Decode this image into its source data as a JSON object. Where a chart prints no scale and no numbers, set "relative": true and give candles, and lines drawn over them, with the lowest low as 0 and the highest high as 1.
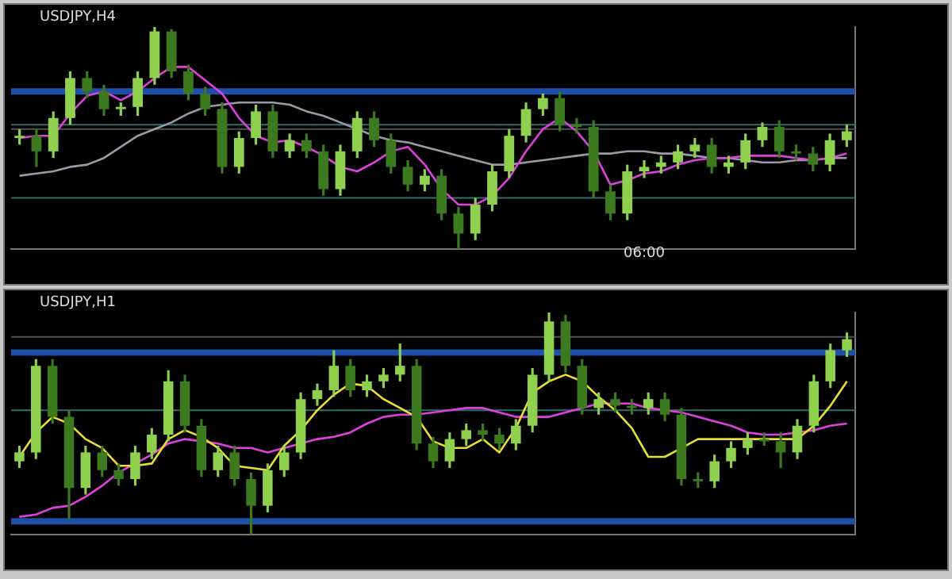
{
  "chart_data": [
    {
      "type": "candlestick",
      "title": "USDJPY,H4",
      "relative": true,
      "tick_labels": false,
      "legend": false,
      "colors": [
        "#8fd14f",
        "#3d7a1f",
        "#8fd14f",
        "#8fd14f",
        "#3d7a1f",
        "#3d7a1f",
        "#8fd14f",
        "#8fd14f",
        "#8fd14f",
        "#3d7a1f",
        "#3d7a1f",
        "#3d7a1f",
        "#3d7a1f",
        "#8fd14f",
        "#8fd14f",
        "#3d7a1f",
        "#8fd14f",
        "#3d7a1f",
        "#3d7a1f",
        "#8fd14f",
        "#8fd14f",
        "#3d7a1f",
        "#3d7a1f",
        "#3d7a1f",
        "#8fd14f",
        "#3d7a1f",
        "#3d7a1f",
        "#8fd14f",
        "#8fd14f",
        "#8fd14f",
        "#8fd14f",
        "#8fd14f",
        "#3d7a1f",
        "#3d7a1f",
        "#3d7a1f",
        "#3d7a1f",
        "#8fd14f",
        "#8fd14f",
        "#8fd14f",
        "#8fd14f",
        "#8fd14f",
        "#3d7a1f",
        "#8fd14f",
        "#8fd14f",
        "#8fd14f",
        "#3d7a1f",
        "#3d7a1f",
        "#3d7a1f",
        "#8fd14f",
        "#8fd14f"
      ],
      "categories": [
        null,
        null,
        null,
        null,
        null,
        null,
        null,
        null,
        null,
        null,
        null,
        null,
        null,
        null,
        null,
        null,
        null,
        null,
        null,
        null,
        null,
        null,
        null,
        null,
        null,
        null,
        null,
        null,
        null,
        null,
        null,
        null,
        null,
        null,
        null,
        null,
        null,
        null,
        null,
        null,
        null,
        null,
        null,
        null,
        null,
        null,
        null,
        null,
        null,
        null
      ],
      "ohlc": [
        [
          0.5,
          0.54,
          0.47,
          0.51
        ],
        [
          0.51,
          0.54,
          0.37,
          0.44
        ],
        [
          0.44,
          0.62,
          0.41,
          0.59
        ],
        [
          0.59,
          0.8,
          0.56,
          0.77
        ],
        [
          0.77,
          0.8,
          0.68,
          0.71
        ],
        [
          0.71,
          0.74,
          0.6,
          0.63
        ],
        [
          0.63,
          0.66,
          0.6,
          0.64
        ],
        [
          0.64,
          0.8,
          0.6,
          0.77
        ],
        [
          0.77,
          1.0,
          0.74,
          0.98
        ],
        [
          0.98,
          0.99,
          0.77,
          0.8
        ],
        [
          0.8,
          0.83,
          0.67,
          0.7
        ],
        [
          0.7,
          0.73,
          0.6,
          0.63
        ],
        [
          0.63,
          0.66,
          0.34,
          0.37
        ],
        [
          0.37,
          0.53,
          0.34,
          0.5
        ],
        [
          0.5,
          0.65,
          0.47,
          0.62
        ],
        [
          0.62,
          0.65,
          0.41,
          0.44
        ],
        [
          0.44,
          0.52,
          0.41,
          0.49
        ],
        [
          0.49,
          0.52,
          0.41,
          0.44
        ],
        [
          0.44,
          0.47,
          0.24,
          0.27
        ],
        [
          0.27,
          0.47,
          0.24,
          0.44
        ],
        [
          0.44,
          0.62,
          0.41,
          0.59
        ],
        [
          0.59,
          0.62,
          0.46,
          0.49
        ],
        [
          0.49,
          0.52,
          0.34,
          0.37
        ],
        [
          0.37,
          0.4,
          0.26,
          0.29
        ],
        [
          0.29,
          0.36,
          0.26,
          0.33
        ],
        [
          0.33,
          0.36,
          0.13,
          0.16
        ],
        [
          0.16,
          0.19,
          0.0,
          0.07
        ],
        [
          0.07,
          0.23,
          0.04,
          0.2
        ],
        [
          0.2,
          0.38,
          0.17,
          0.35
        ],
        [
          0.35,
          0.54,
          0.32,
          0.51
        ],
        [
          0.51,
          0.66,
          0.48,
          0.63
        ],
        [
          0.63,
          0.7,
          0.6,
          0.68
        ],
        [
          0.68,
          0.71,
          0.53,
          0.56
        ],
        [
          0.56,
          0.59,
          0.52,
          0.55
        ],
        [
          0.55,
          0.58,
          0.23,
          0.26
        ],
        [
          0.26,
          0.29,
          0.13,
          0.16
        ],
        [
          0.16,
          0.38,
          0.13,
          0.35
        ],
        [
          0.35,
          0.4,
          0.32,
          0.37
        ],
        [
          0.37,
          0.42,
          0.34,
          0.39
        ],
        [
          0.39,
          0.47,
          0.36,
          0.44
        ],
        [
          0.44,
          0.5,
          0.41,
          0.47
        ],
        [
          0.47,
          0.5,
          0.34,
          0.37
        ],
        [
          0.37,
          0.42,
          0.34,
          0.39
        ],
        [
          0.39,
          0.52,
          0.36,
          0.49
        ],
        [
          0.49,
          0.57,
          0.46,
          0.55
        ],
        [
          0.55,
          0.58,
          0.41,
          0.44
        ],
        [
          0.44,
          0.47,
          0.4,
          0.43
        ],
        [
          0.43,
          0.46,
          0.35,
          0.38
        ],
        [
          0.38,
          0.52,
          0.35,
          0.49
        ],
        [
          0.49,
          0.56,
          0.46,
          0.53
        ]
      ],
      "series": [
        {
          "type": "line",
          "color": "#e040e0",
          "values": [
            0.5,
            0.51,
            0.51,
            0.61,
            0.69,
            0.71,
            0.67,
            0.71,
            0.77,
            0.82,
            0.82,
            0.76,
            0.7,
            0.59,
            0.51,
            0.48,
            0.49,
            0.46,
            0.42,
            0.37,
            0.35,
            0.39,
            0.44,
            0.46,
            0.38,
            0.27,
            0.2,
            0.2,
            0.24,
            0.32,
            0.44,
            0.54,
            0.59,
            0.53,
            0.44,
            0.29,
            0.31,
            0.34,
            0.35,
            0.38,
            0.4,
            0.41,
            0.41,
            0.42,
            0.42,
            0.42,
            0.41,
            0.4,
            0.41,
            0.43
          ]
        },
        {
          "type": "line",
          "color": "#9a9aa6",
          "values": [
            0.33,
            0.34,
            0.35,
            0.37,
            0.38,
            0.41,
            0.46,
            0.51,
            0.54,
            0.57,
            0.61,
            0.64,
            0.65,
            0.66,
            0.66,
            0.66,
            0.65,
            0.62,
            0.6,
            0.57,
            0.54,
            0.51,
            0.49,
            0.48,
            0.46,
            0.44,
            0.42,
            0.4,
            0.38,
            0.38,
            0.39,
            0.4,
            0.41,
            0.42,
            0.43,
            0.43,
            0.44,
            0.44,
            0.43,
            0.43,
            0.42,
            0.41,
            0.41,
            0.4,
            0.39,
            0.39,
            0.4,
            0.4,
            0.41,
            0.41
          ]
        }
      ],
      "ref_lines": [
        {
          "axis": "y",
          "value": 0.71,
          "color": "#1f4fa8"
        },
        {
          "axis": "y",
          "value": 0.56,
          "color": "#2f6f6a"
        },
        {
          "axis": "y",
          "value": 0.54,
          "color": "#505050"
        },
        {
          "axis": "y",
          "value": 0.23,
          "color": "#2f6f6a"
        }
      ],
      "annotations": [
        "06:00"
      ]
    },
    {
      "type": "candlestick",
      "title": "USDJPY,H1",
      "relative": true,
      "tick_labels": false,
      "legend": false,
      "colors": [
        "#8fd14f",
        "#8fd14f",
        "#3d7a1f",
        "#3d7a1f",
        "#8fd14f",
        "#3d7a1f",
        "#3d7a1f",
        "#8fd14f",
        "#8fd14f",
        "#8fd14f",
        "#3d7a1f",
        "#3d7a1f",
        "#8fd14f",
        "#3d7a1f",
        "#3d7a1f",
        "#8fd14f",
        "#8fd14f",
        "#8fd14f",
        "#8fd14f",
        "#8fd14f",
        "#3d7a1f",
        "#8fd14f",
        "#8fd14f",
        "#8fd14f",
        "#3d7a1f",
        "#3d7a1f",
        "#8fd14f",
        "#8fd14f",
        "#3d7a1f",
        "#3d7a1f",
        "#8fd14f",
        "#8fd14f",
        "#8fd14f",
        "#3d7a1f",
        "#3d7a1f",
        "#8fd14f",
        "#3d7a1f",
        "#3d7a1f",
        "#8fd14f",
        "#3d7a1f",
        "#3d7a1f",
        "#3d7a1f",
        "#8fd14f",
        "#8fd14f",
        "#8fd14f",
        "#3d7a1f",
        "#3d7a1f",
        "#8fd14f",
        "#8fd14f",
        "#8fd14f",
        "#8fd14f"
      ],
      "categories": [
        null,
        null,
        null,
        null,
        null,
        null,
        null,
        null,
        null,
        null,
        null,
        null,
        null,
        null,
        null,
        null,
        null,
        null,
        null,
        null,
        null,
        null,
        null,
        null,
        null,
        null,
        null,
        null,
        null,
        null,
        null,
        null,
        null,
        null,
        null,
        null,
        null,
        null,
        null,
        null,
        null,
        null,
        null,
        null,
        null,
        null,
        null,
        null,
        null,
        null,
        null
      ],
      "ohlc": [
        [
          0.33,
          0.4,
          0.3,
          0.37
        ],
        [
          0.37,
          0.79,
          0.34,
          0.76
        ],
        [
          0.76,
          0.79,
          0.5,
          0.53
        ],
        [
          0.53,
          0.56,
          0.07,
          0.21
        ],
        [
          0.21,
          0.4,
          0.18,
          0.37
        ],
        [
          0.37,
          0.4,
          0.26,
          0.29
        ],
        [
          0.29,
          0.32,
          0.22,
          0.25
        ],
        [
          0.25,
          0.4,
          0.22,
          0.37
        ],
        [
          0.37,
          0.48,
          0.34,
          0.45
        ],
        [
          0.45,
          0.74,
          0.42,
          0.69
        ],
        [
          0.69,
          0.72,
          0.46,
          0.49
        ],
        [
          0.49,
          0.52,
          0.26,
          0.29
        ],
        [
          0.29,
          0.4,
          0.26,
          0.37
        ],
        [
          0.37,
          0.4,
          0.22,
          0.25
        ],
        [
          0.25,
          0.28,
          0.0,
          0.13
        ],
        [
          0.13,
          0.32,
          0.1,
          0.29
        ],
        [
          0.29,
          0.4,
          0.26,
          0.37
        ],
        [
          0.37,
          0.64,
          0.34,
          0.61
        ],
        [
          0.61,
          0.68,
          0.58,
          0.65
        ],
        [
          0.65,
          0.83,
          0.62,
          0.76
        ],
        [
          0.76,
          0.79,
          0.62,
          0.65
        ],
        [
          0.65,
          0.72,
          0.62,
          0.69
        ],
        [
          0.69,
          0.75,
          0.66,
          0.72
        ],
        [
          0.72,
          0.86,
          0.69,
          0.76
        ],
        [
          0.76,
          0.79,
          0.38,
          0.41
        ],
        [
          0.41,
          0.44,
          0.3,
          0.33
        ],
        [
          0.33,
          0.46,
          0.3,
          0.43
        ],
        [
          0.43,
          0.5,
          0.4,
          0.47
        ],
        [
          0.47,
          0.5,
          0.42,
          0.45
        ],
        [
          0.45,
          0.48,
          0.38,
          0.41
        ],
        [
          0.41,
          0.52,
          0.38,
          0.49
        ],
        [
          0.49,
          0.75,
          0.46,
          0.72
        ],
        [
          0.72,
          1.0,
          0.69,
          0.96
        ],
        [
          0.96,
          0.99,
          0.73,
          0.76
        ],
        [
          0.76,
          0.79,
          0.54,
          0.57
        ],
        [
          0.57,
          0.64,
          0.54,
          0.61
        ],
        [
          0.61,
          0.64,
          0.55,
          0.58
        ],
        [
          0.58,
          0.61,
          0.54,
          0.57
        ],
        [
          0.57,
          0.64,
          0.54,
          0.61
        ],
        [
          0.61,
          0.64,
          0.51,
          0.54
        ],
        [
          0.54,
          0.57,
          0.22,
          0.25
        ],
        [
          0.25,
          0.28,
          0.21,
          0.24
        ],
        [
          0.24,
          0.36,
          0.21,
          0.33
        ],
        [
          0.33,
          0.42,
          0.3,
          0.39
        ],
        [
          0.39,
          0.46,
          0.36,
          0.43
        ],
        [
          0.43,
          0.46,
          0.4,
          0.42
        ],
        [
          0.42,
          0.46,
          0.3,
          0.37
        ],
        [
          0.37,
          0.52,
          0.34,
          0.49
        ],
        [
          0.49,
          0.72,
          0.46,
          0.69
        ],
        [
          0.69,
          0.86,
          0.66,
          0.83
        ],
        [
          0.83,
          0.91,
          0.8,
          0.88
        ]
      ],
      "series": [
        {
          "type": "line",
          "color": "#e8e030",
          "values": [
            0.35,
            0.46,
            0.53,
            0.5,
            0.43,
            0.39,
            0.31,
            0.31,
            0.32,
            0.43,
            0.47,
            0.44,
            0.39,
            0.31,
            0.3,
            0.29,
            0.4,
            0.47,
            0.56,
            0.63,
            0.68,
            0.67,
            0.61,
            0.57,
            0.53,
            0.42,
            0.39,
            0.39,
            0.43,
            0.37,
            0.48,
            0.64,
            0.69,
            0.72,
            0.69,
            0.62,
            0.56,
            0.48,
            0.35,
            0.35,
            0.39,
            0.43,
            0.43,
            0.43,
            0.43,
            0.43,
            0.43,
            0.43,
            0.49,
            0.58,
            0.69
          ]
        },
        {
          "type": "line",
          "color": "#e040e0",
          "values": [
            0.08,
            0.09,
            0.12,
            0.13,
            0.17,
            0.22,
            0.28,
            0.32,
            0.36,
            0.41,
            0.43,
            0.42,
            0.41,
            0.39,
            0.39,
            0.37,
            0.39,
            0.41,
            0.43,
            0.44,
            0.46,
            0.5,
            0.53,
            0.54,
            0.54,
            0.55,
            0.56,
            0.57,
            0.57,
            0.55,
            0.53,
            0.53,
            0.53,
            0.55,
            0.57,
            0.59,
            0.59,
            0.59,
            0.57,
            0.56,
            0.55,
            0.53,
            0.51,
            0.49,
            0.46,
            0.45,
            0.45,
            0.46,
            0.47,
            0.49,
            0.5
          ]
        }
      ],
      "ref_lines": [
        {
          "axis": "y",
          "value": 0.89,
          "color": "#505050"
        },
        {
          "axis": "y",
          "value": 0.82,
          "color": "#1f4fa8"
        },
        {
          "axis": "y",
          "value": 0.56,
          "color": "#2f6f6a"
        },
        {
          "axis": "y",
          "value": 0.06,
          "color": "#1f4fa8"
        }
      ]
    }
  ]
}
